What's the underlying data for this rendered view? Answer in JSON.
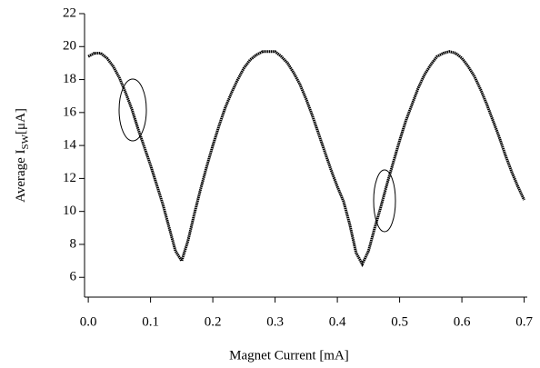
{
  "chart_data": {
    "type": "line",
    "x_label": "Magnet Current [mA]",
    "y_label": "Average I",
    "y_label_sub": "SW",
    "y_label_unit": "[μA]",
    "x": [
      0.0,
      0.01,
      0.02,
      0.03,
      0.04,
      0.05,
      0.06,
      0.07,
      0.08,
      0.09,
      0.1,
      0.11,
      0.12,
      0.13,
      0.14,
      0.15,
      0.16,
      0.17,
      0.18,
      0.19,
      0.2,
      0.21,
      0.22,
      0.23,
      0.24,
      0.25,
      0.26,
      0.27,
      0.28,
      0.29,
      0.3,
      0.31,
      0.32,
      0.33,
      0.34,
      0.35,
      0.36,
      0.37,
      0.38,
      0.39,
      0.4,
      0.41,
      0.42,
      0.43,
      0.44,
      0.45,
      0.46,
      0.47,
      0.48,
      0.49,
      0.5,
      0.51,
      0.52,
      0.53,
      0.54,
      0.55,
      0.56,
      0.57,
      0.58,
      0.59,
      0.6,
      0.61,
      0.62,
      0.63,
      0.64,
      0.65,
      0.66,
      0.67,
      0.68,
      0.69,
      0.7
    ],
    "values": [
      19.4,
      19.6,
      19.6,
      19.3,
      18.8,
      18.1,
      17.2,
      16.2,
      15.0,
      13.9,
      12.8,
      11.6,
      10.4,
      9.0,
      7.6,
      7.0,
      8.2,
      9.8,
      11.3,
      12.7,
      14.0,
      15.2,
      16.3,
      17.2,
      18.0,
      18.7,
      19.2,
      19.5,
      19.7,
      19.7,
      19.7,
      19.4,
      19.0,
      18.4,
      17.7,
      16.8,
      15.8,
      14.7,
      13.6,
      12.5,
      11.5,
      10.6,
      9.2,
      7.5,
      6.8,
      7.6,
      9.0,
      10.3,
      11.7,
      13.0,
      14.3,
      15.5,
      16.5,
      17.5,
      18.3,
      18.9,
      19.4,
      19.6,
      19.7,
      19.6,
      19.3,
      18.8,
      18.2,
      17.4,
      16.5,
      15.5,
      14.5,
      13.4,
      12.4,
      11.5,
      10.7
    ],
    "color": "#000000",
    "xlim": [
      -0.006,
      0.705
    ],
    "ylim": [
      4.8,
      22
    ],
    "xticks": [
      {
        "value": 0,
        "label": "0.0"
      },
      0.1,
      0.2,
      0.3,
      0.4,
      0.5,
      0.6,
      0.7
    ],
    "yticks": [
      6,
      8,
      10,
      12,
      14,
      16,
      18,
      20,
      22
    ],
    "grid": false
  }
}
